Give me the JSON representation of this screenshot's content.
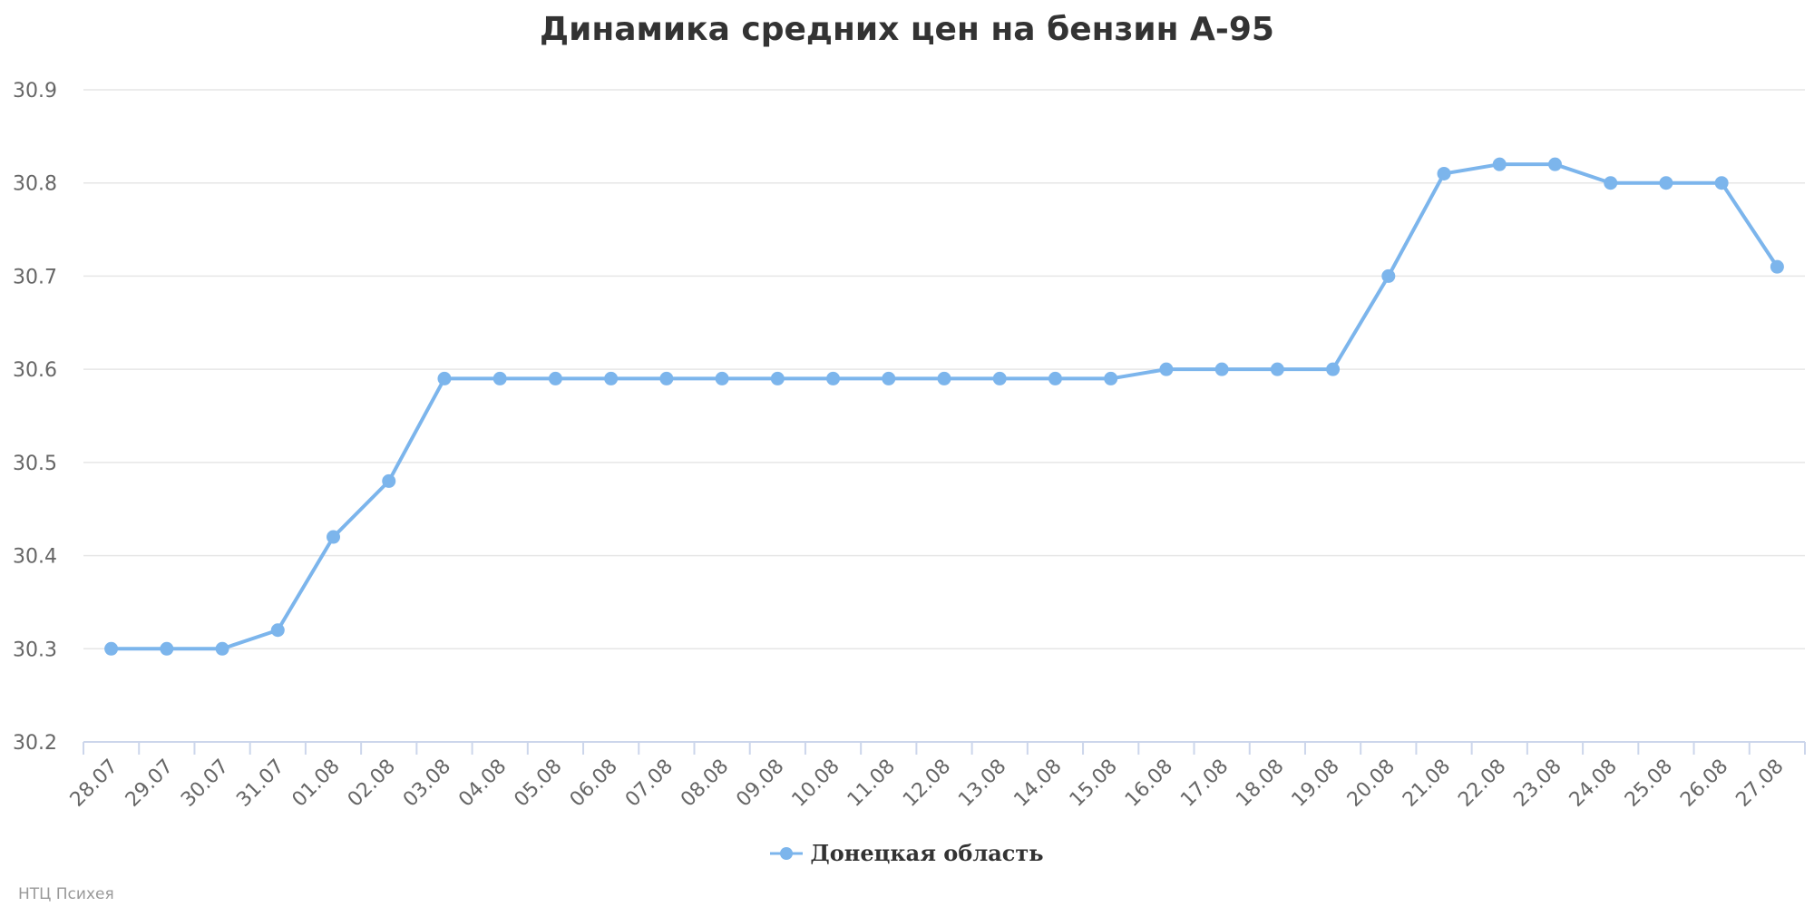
{
  "chart_data": {
    "type": "line",
    "title": "Динамика средних цен на бензин А-95",
    "categories": [
      "28.07",
      "29.07",
      "30.07",
      "31.07",
      "01.08",
      "02.08",
      "03.08",
      "04.08",
      "05.08",
      "06.08",
      "07.08",
      "08.08",
      "09.08",
      "10.08",
      "11.08",
      "12.08",
      "13.08",
      "14.08",
      "15.08",
      "16.08",
      "17.08",
      "18.08",
      "19.08",
      "20.08",
      "21.08",
      "22.08",
      "23.08",
      "24.08",
      "25.08",
      "26.08",
      "27.08"
    ],
    "series": [
      {
        "name": "Донецкая область",
        "color": "#7cb5ec",
        "values": [
          30.3,
          30.3,
          30.3,
          30.32,
          30.42,
          30.48,
          30.59,
          30.59,
          30.59,
          30.59,
          30.59,
          30.59,
          30.59,
          30.59,
          30.59,
          30.59,
          30.59,
          30.59,
          30.59,
          30.6,
          30.6,
          30.6,
          30.6,
          30.7,
          30.81,
          30.82,
          30.82,
          30.8,
          30.8,
          30.8,
          30.71
        ]
      }
    ],
    "ylim": [
      30.2,
      30.9
    ],
    "yticks": [
      "30.2",
      "30.3",
      "30.4",
      "30.5",
      "30.6",
      "30.7",
      "30.8",
      "30.9"
    ],
    "xlabel": "",
    "ylabel": "",
    "grid": true,
    "legend_position": "bottom-center"
  },
  "credits": "НТЦ Психея"
}
